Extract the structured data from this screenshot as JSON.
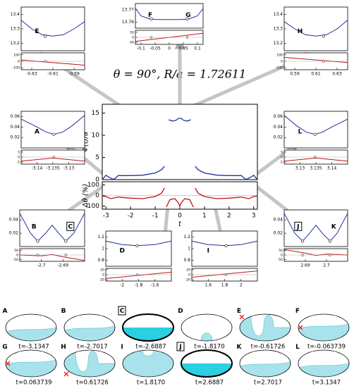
{
  "title": "θ = 90°, R/a = 1.72611",
  "chart_data": [
    {
      "type": "line",
      "ylabel": "Ψ(t)/a",
      "xlim": [
        -3.15,
        3.15
      ],
      "ylim": [
        0,
        17
      ],
      "yticks": [
        0,
        5,
        10,
        15
      ],
      "series": [
        {
          "color": "#1f2fa0",
          "x": [
            -3.14,
            -3.0,
            -2.9,
            -2.7,
            -2.6,
            -2.5,
            -2.0,
            -1.5,
            -1.0,
            -0.75,
            -0.62,
            -0.6,
            -0.45,
            -0.3,
            -0.15,
            -0.06,
            0,
            0.06,
            0.15,
            0.3,
            0.45,
            0.6,
            0.62,
            0.75,
            1.0,
            1.5,
            2.0,
            2.5,
            2.6,
            2.7,
            2.9,
            3.0,
            3.14
          ],
          "values": [
            0.05,
            1.0,
            0.6,
            0.05,
            0.4,
            0.9,
            0.9,
            1.0,
            1.5,
            2.2,
            3.0,
            null,
            13.5,
            13.2,
            13.4,
            13.8,
            13.8,
            13.8,
            13.4,
            13.2,
            13.5,
            null,
            3.0,
            2.2,
            1.5,
            1.0,
            0.9,
            0.9,
            0.4,
            0.05,
            0.6,
            1.0,
            0.05
          ]
        }
      ]
    },
    {
      "type": "line",
      "ylabel": "Δθ (%)",
      "xlabel": "t",
      "xlim": [
        -3.15,
        3.15
      ],
      "ylim": [
        -130,
        130
      ],
      "yticks": [
        100,
        0,
        -100
      ],
      "xticks": [
        -3,
        -2,
        -1,
        0,
        1,
        2,
        3
      ],
      "series": [
        {
          "color": "#c0141a",
          "x": [
            -3.14,
            -3.0,
            -2.8,
            -2.5,
            -2.0,
            -1.5,
            -1.0,
            -0.75,
            -0.62,
            -0.6,
            -0.55,
            -0.4,
            -0.2,
            -0.06,
            0,
            0.06,
            0.2,
            0.4,
            0.55,
            0.6,
            0.62,
            0.75,
            1.0,
            1.5,
            2.0,
            2.5,
            2.8,
            3.0,
            3.14
          ],
          "values": [
            -5,
            -10,
            -30,
            -15,
            -25,
            -30,
            -10,
            20,
            70,
            null,
            -110,
            -40,
            -30,
            -70,
            -100,
            -70,
            -30,
            -40,
            -110,
            null,
            70,
            20,
            -10,
            -30,
            -25,
            -15,
            -30,
            -10,
            -5
          ]
        }
      ]
    },
    {
      "type": "inset",
      "letters": [
        "E"
      ],
      "boxed": [
        false
      ],
      "xlim": [
        -0.64,
        -0.58
      ],
      "xticks": [
        -0.63,
        -0.61,
        -0.59
      ],
      "ylim": [
        13.15,
        13.45
      ],
      "yticks": [
        13.2,
        13.3,
        13.4
      ],
      "series": [
        {
          "color": "#1f2fa0",
          "x": [
            -0.64,
            -0.63,
            -0.62,
            -0.61,
            -0.6,
            -0.59,
            -0.58
          ],
          "values": [
            13.36,
            13.3,
            13.26,
            13.25,
            13.26,
            13.3,
            13.35
          ]
        }
      ],
      "points": {
        "x": [
          -0.61726
        ],
        "values": [
          13.25
        ]
      },
      "lower": {
        "ylim": [
          -130,
          130
        ],
        "yticks": [
          100,
          0,
          -100
        ],
        "series": [
          {
            "color": "#c0141a",
            "x": [
              -0.64,
              -0.58
            ],
            "values": [
              20,
              -60
            ]
          }
        ]
      }
    },
    {
      "type": "inset",
      "letters": [
        "F",
        "G"
      ],
      "boxed": [
        false,
        false
      ],
      "xlim": [
        -0.12,
        0.12
      ],
      "xticks": [
        -0.1,
        -0.05,
        0,
        0.05,
        0.1
      ],
      "ylim": [
        13.755,
        13.775
      ],
      "yticks": [
        13.76,
        13.77
      ],
      "series": [
        {
          "color": "#1f2fa0",
          "x": [
            -0.12,
            -0.1,
            -0.07,
            -0.04,
            0,
            0.04,
            0.07,
            0.1,
            0.12
          ],
          "values": [
            13.771,
            13.765,
            13.7625,
            13.762,
            13.762,
            13.762,
            13.7625,
            13.765,
            13.771
          ]
        }
      ],
      "points": {
        "x": [
          -0.063739,
          0.063739
        ],
        "values": [
          13.7625,
          13.7625
        ]
      },
      "lower": {
        "ylim": [
          -70,
          70
        ],
        "yticks": [
          50,
          0,
          -50
        ],
        "series": [
          {
            "color": "#c0141a",
            "x": [
              -0.12,
              0.12
            ],
            "values": [
              -40,
              40
            ]
          }
        ]
      }
    },
    {
      "type": "inset",
      "letters": [
        "H"
      ],
      "boxed": [
        false
      ],
      "xlim": [
        0.58,
        0.64
      ],
      "xticks": [
        0.59,
        0.61,
        0.63
      ],
      "ylim": [
        13.15,
        13.45
      ],
      "yticks": [
        13.2,
        13.3,
        13.4
      ],
      "series": [
        {
          "color": "#1f2fa0",
          "x": [
            0.58,
            0.59,
            0.6,
            0.61,
            0.62,
            0.63,
            0.64
          ],
          "values": [
            13.35,
            13.3,
            13.26,
            13.25,
            13.26,
            13.3,
            13.36
          ]
        }
      ],
      "points": {
        "x": [
          0.61726
        ],
        "values": [
          13.25
        ]
      },
      "lower": {
        "ylim": [
          -130,
          130
        ],
        "yticks": [
          100,
          0,
          -100
        ],
        "series": [
          {
            "color": "#c0141a",
            "x": [
              0.58,
              0.64
            ],
            "values": [
              60,
              -20
            ]
          }
        ]
      }
    },
    {
      "type": "inset",
      "letters": [
        "A"
      ],
      "boxed": [
        false
      ],
      "xlim": [
        -3.145,
        -3.125
      ],
      "xticks": [
        -3.14,
        -3.135,
        -3.13
      ],
      "ylim": [
        0,
        0.07
      ],
      "yticks": [
        0.02,
        0.04,
        0.06
      ],
      "series": [
        {
          "color": "#1f2fa0",
          "x": [
            -3.145,
            -3.14,
            -3.137,
            -3.1347,
            -3.132,
            -3.129,
            -3.125
          ],
          "values": [
            0.055,
            0.04,
            0.03,
            0.026,
            0.03,
            0.042,
            0.062
          ]
        }
      ],
      "points": {
        "x": [
          -3.1347
        ],
        "values": [
          0.026
        ]
      },
      "lower": {
        "ylim": [
          -7,
          7
        ],
        "yticks": [
          5,
          0,
          -5
        ],
        "series": [
          {
            "color": "#c0141a",
            "x": [
              -3.145,
              -3.135,
              -3.125
            ],
            "values": [
              -4,
              -1,
              -4
            ]
          }
        ]
      }
    },
    {
      "type": "inset",
      "letters": [
        "L"
      ],
      "boxed": [
        false
      ],
      "xlim": [
        3.125,
        3.145
      ],
      "xticks": [
        3.13,
        3.135,
        3.14
      ],
      "ylim": [
        0,
        0.07
      ],
      "yticks": [
        0.02,
        0.04,
        0.06
      ],
      "series": [
        {
          "color": "#1f2fa0",
          "x": [
            3.125,
            3.129,
            3.132,
            3.1347,
            3.137,
            3.14,
            3.145
          ],
          "values": [
            0.062,
            0.042,
            0.03,
            0.026,
            0.03,
            0.04,
            0.055
          ]
        }
      ],
      "points": {
        "x": [
          3.1347
        ],
        "values": [
          0.026
        ]
      },
      "lower": {
        "ylim": [
          -7,
          7
        ],
        "yticks": [
          5,
          0,
          -5
        ],
        "series": [
          {
            "color": "#c0141a",
            "x": [
              3.125,
              3.135,
              3.145
            ],
            "values": [
              -4,
              -1,
              -4
            ]
          }
        ]
      }
    },
    {
      "type": "inset",
      "letters": [
        "B",
        "C"
      ],
      "boxed": [
        false,
        true
      ],
      "xlim": [
        -2.71,
        -2.68
      ],
      "xticks": [
        -2.7,
        -2.69
      ],
      "ylim": [
        0,
        0.055
      ],
      "yticks": [
        0.02,
        0.04
      ],
      "series": [
        {
          "color": "#1f2fa0",
          "x": [
            -2.71,
            -2.705,
            -2.7017,
            -2.698,
            -2.695,
            -2.692,
            -2.6887,
            -2.685,
            -2.68
          ],
          "values": [
            0.05,
            0.02,
            0.008,
            0.02,
            0.032,
            0.02,
            0.008,
            0.02,
            0.05
          ]
        }
      ],
      "points": {
        "x": [
          -2.7017,
          -2.6887
        ],
        "values": [
          0.008,
          0.008
        ]
      },
      "lower": {
        "ylim": [
          -70,
          70
        ],
        "yticks": [
          50,
          0,
          -50
        ],
        "series": [
          {
            "color": "#c0141a",
            "x": [
              -2.71,
              -2.7,
              -2.695,
              -2.69,
              -2.68
            ],
            "values": [
              0,
              -10,
              5,
              -20,
              -60
            ]
          }
        ]
      }
    },
    {
      "type": "inset",
      "letters": [
        "D"
      ],
      "boxed": [
        false
      ],
      "xlim": [
        -2.2,
        -1.4
      ],
      "xticks": [
        -2,
        -1.8,
        -1.6
      ],
      "ylim": [
        0.7,
        1.3
      ],
      "yticks": [
        0.8,
        1,
        1.2
      ],
      "series": [
        {
          "color": "#1f2fa0",
          "x": [
            -2.2,
            -2.0,
            -1.817,
            -1.6,
            -1.4
          ],
          "values": [
            1.13,
            1.07,
            1.05,
            1.07,
            1.13
          ]
        }
      ],
      "points": {
        "x": [
          -1.817
        ],
        "values": [
          1.05
        ]
      },
      "lower": {
        "ylim": [
          -25,
          25
        ],
        "yticks": [
          20,
          0,
          -20
        ],
        "series": [
          {
            "color": "#c0141a",
            "x": [
              -2.2,
              -1.4
            ],
            "values": [
              -15,
              10
            ]
          }
        ]
      }
    },
    {
      "type": "inset",
      "letters": [
        "I"
      ],
      "boxed": [
        false
      ],
      "xlim": [
        1.4,
        2.2
      ],
      "xticks": [
        1.6,
        1.8,
        2
      ],
      "ylim": [
        0.7,
        1.3
      ],
      "yticks": [
        0.8,
        1,
        1.2
      ],
      "series": [
        {
          "color": "#1f2fa0",
          "x": [
            1.4,
            1.6,
            1.817,
            2.0,
            2.2
          ],
          "values": [
            1.13,
            1.07,
            1.05,
            1.07,
            1.13
          ]
        }
      ],
      "points": {
        "x": [
          1.817
        ],
        "values": [
          1.05
        ]
      },
      "lower": {
        "ylim": [
          -25,
          25
        ],
        "yticks": [
          20,
          0,
          -20
        ],
        "series": [
          {
            "color": "#c0141a",
            "x": [
              1.4,
              2.2
            ],
            "values": [
              -10,
              15
            ]
          }
        ]
      }
    },
    {
      "type": "inset",
      "letters": [
        "J",
        "K"
      ],
      "boxed": [
        true,
        false
      ],
      "xlim": [
        2.68,
        2.71
      ],
      "xticks": [
        2.69,
        2.7
      ],
      "ylim": [
        0,
        0.055
      ],
      "yticks": [
        0.02,
        0.04
      ],
      "series": [
        {
          "color": "#1f2fa0",
          "x": [
            2.68,
            2.685,
            2.6887,
            2.692,
            2.695,
            2.698,
            2.7017,
            2.705,
            2.71
          ],
          "values": [
            0.05,
            0.02,
            0.008,
            0.02,
            0.032,
            0.02,
            0.008,
            0.02,
            0.05
          ]
        }
      ],
      "points": {
        "x": [
          2.6887,
          2.7017
        ],
        "values": [
          0.008,
          0.008
        ]
      },
      "lower": {
        "ylim": [
          -70,
          70
        ],
        "yticks": [
          50,
          0,
          -50
        ],
        "series": [
          {
            "color": "#c0141a",
            "x": [
              2.68,
              2.69,
              2.695,
              2.7,
              2.71
            ],
            "values": [
              60,
              20,
              -5,
              10,
              0
            ]
          }
        ]
      }
    }
  ],
  "shapes": [
    {
      "letter": "A",
      "label": "t=-3.1347",
      "boxed": false,
      "pinned": false
    },
    {
      "letter": "B",
      "label": "t=-2.7017",
      "boxed": false,
      "pinned": false
    },
    {
      "letter": "C",
      "label": "t=-2.6887",
      "boxed": true,
      "pinned": false
    },
    {
      "letter": "D",
      "label": "t=-1.8170",
      "boxed": false,
      "pinned": false
    },
    {
      "letter": "E",
      "label": "t=-0.61726",
      "boxed": false,
      "pinned": true
    },
    {
      "letter": "F",
      "label": "t=-0.063739",
      "boxed": false,
      "pinned": true
    },
    {
      "letter": "G",
      "label": "t=0.063739",
      "boxed": false,
      "pinned": true
    },
    {
      "letter": "H",
      "label": "t=0.61726",
      "boxed": false,
      "pinned": true
    },
    {
      "letter": "I",
      "label": "t=1.8170",
      "boxed": false,
      "pinned": false
    },
    {
      "letter": "J",
      "label": "t=2.6887",
      "boxed": true,
      "pinned": false
    },
    {
      "letter": "K",
      "label": "t=2.7017",
      "boxed": false,
      "pinned": false
    },
    {
      "letter": "L",
      "label": "t=3.1347",
      "boxed": false,
      "pinned": false
    }
  ]
}
